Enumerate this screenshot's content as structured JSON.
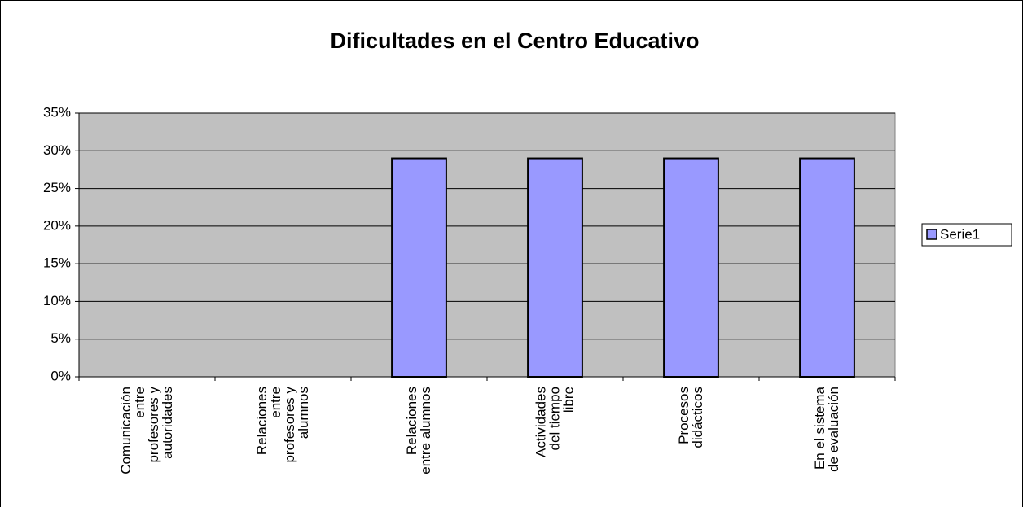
{
  "chart_data": {
    "type": "bar",
    "title": "Dificultades en el Centro Educativo",
    "categories": [
      "Comunicación entre profesores y autoridades",
      "Relaciones entre profesores y alumnos",
      "Relaciones entre alumnos",
      "Actividades del tiempo libre",
      "Procesos didácticos",
      "En el sistema de evaluación"
    ],
    "series": [
      {
        "name": "Serie1",
        "color": "#9999ff",
        "values": [
          0,
          0,
          29,
          29,
          29,
          29
        ]
      }
    ],
    "ylim": [
      0,
      35
    ],
    "yticks": [
      {
        "value": 0,
        "label": "0%"
      },
      {
        "value": 5,
        "label": "5%"
      },
      {
        "value": 10,
        "label": "10%"
      },
      {
        "value": 15,
        "label": "15%"
      },
      {
        "value": 20,
        "label": "20%"
      },
      {
        "value": 25,
        "label": "25%"
      },
      {
        "value": 30,
        "label": "30%"
      },
      {
        "value": 35,
        "label": "35%"
      }
    ],
    "grid": true,
    "legend": "right"
  }
}
